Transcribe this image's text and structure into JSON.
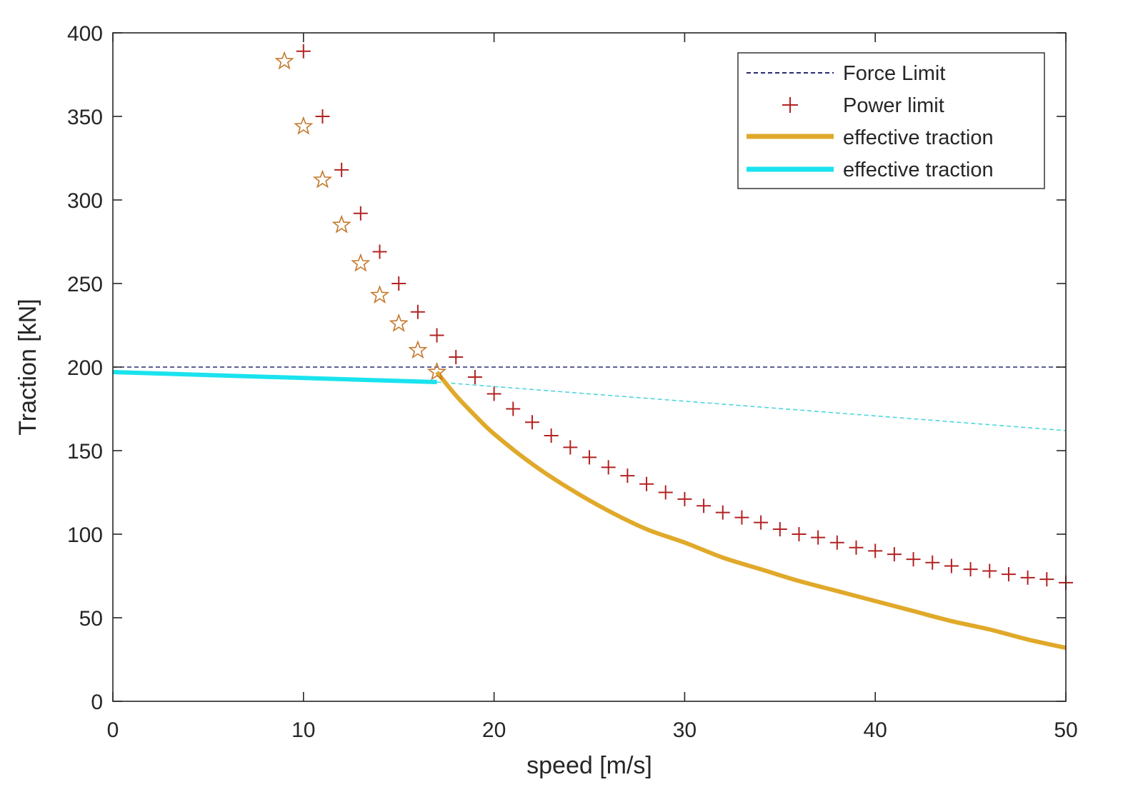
{
  "chart_data": {
    "type": "line",
    "title": "",
    "xlabel": "speed [m/s]",
    "ylabel": "Traction [kN]",
    "xlim": [
      0,
      50
    ],
    "ylim": [
      0,
      400
    ],
    "xticks": [
      0,
      10,
      20,
      30,
      40,
      50
    ],
    "yticks": [
      0,
      50,
      100,
      150,
      200,
      250,
      300,
      350,
      400
    ],
    "grid": false,
    "legend_position": "top-right",
    "series": [
      {
        "name": "Force Limit",
        "style": "dashed-line",
        "color": "#2b2b73",
        "x": [
          0,
          50
        ],
        "y": [
          200,
          200
        ]
      },
      {
        "name": "Power limit",
        "style": "plus-markers",
        "color": "#b22222",
        "x": [
          10,
          11,
          12,
          13,
          14,
          15,
          16,
          17,
          18,
          19,
          20,
          21,
          22,
          23,
          24,
          25,
          26,
          27,
          28,
          29,
          30,
          31,
          32,
          33,
          34,
          35,
          36,
          37,
          38,
          39,
          40,
          41,
          42,
          43,
          44,
          45,
          46,
          47,
          48,
          49,
          50
        ],
        "y": [
          389,
          350,
          318,
          292,
          269,
          250,
          233,
          219,
          206,
          194,
          184,
          175,
          167,
          159,
          152,
          146,
          140,
          135,
          130,
          125,
          121,
          117,
          113,
          110,
          107,
          103,
          100,
          98,
          95,
          92,
          90,
          88,
          85,
          83,
          81,
          79,
          78,
          76,
          74,
          73,
          71
        ]
      },
      {
        "name": "effective traction",
        "style": "solid-line",
        "color": "#e0a92a",
        "x": [
          17,
          18,
          19,
          20,
          22,
          24,
          26,
          28,
          30,
          32,
          34,
          36,
          38,
          40,
          42,
          44,
          46,
          48,
          50
        ],
        "y": [
          197,
          183,
          171,
          160,
          142,
          127,
          114,
          103,
          95,
          86,
          79,
          72,
          66,
          60,
          54,
          48,
          43,
          37,
          32
        ]
      },
      {
        "name": "effective traction",
        "style": "solid-line",
        "color": "#19e3ee",
        "x": [
          0,
          17
        ],
        "y": [
          197,
          191
        ]
      },
      {
        "name": "",
        "style": "thin-dashed-line",
        "color": "#4fd6dc",
        "x": [
          17,
          50
        ],
        "y": [
          191,
          162
        ]
      },
      {
        "name": "",
        "style": "star-markers",
        "color": "#c4782c",
        "x": [
          9,
          10,
          11,
          12,
          13,
          14,
          15,
          16,
          17
        ],
        "y": [
          383,
          344,
          312,
          285,
          262,
          243,
          226,
          210,
          197
        ]
      }
    ]
  }
}
